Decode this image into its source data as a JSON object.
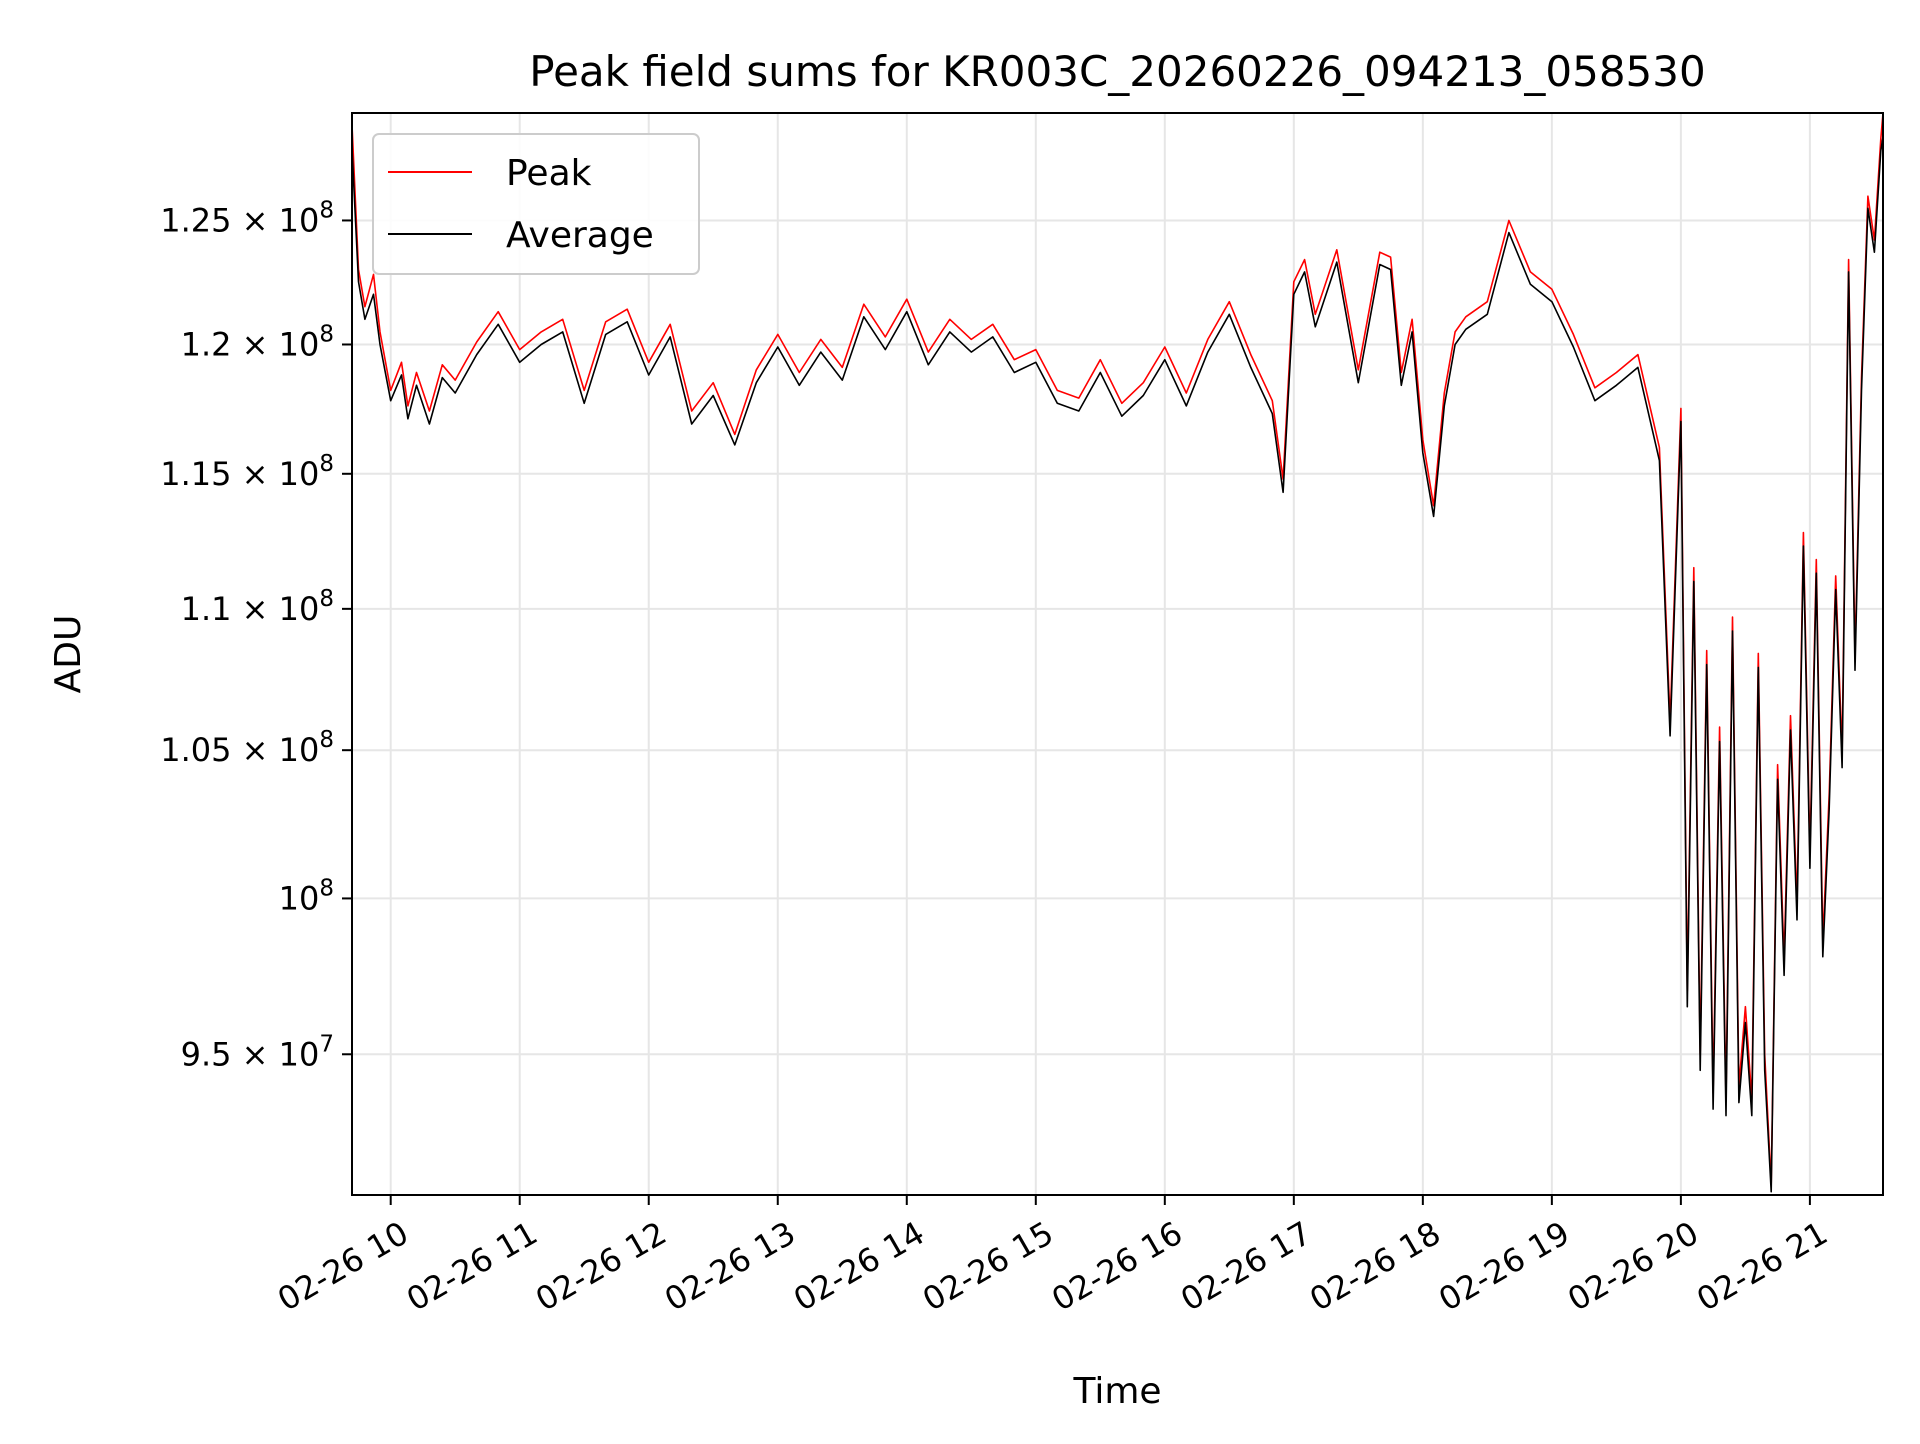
{
  "chart_data": {
    "type": "line",
    "title": "Peak field sums for KR003C_20260226_094213_058530",
    "xlabel": "Time",
    "ylabel": "ADU",
    "y_scale": "log",
    "grid": true,
    "legend_placement": "top-left",
    "xlim": [
      "02-26 09:42",
      "02-26 21:34"
    ],
    "ylim": [
      90700000,
      129500000
    ],
    "x_ticks": [
      {
        "value": "02-26 10:00",
        "label": "02-26 10"
      },
      {
        "value": "02-26 11:00",
        "label": "02-26 11"
      },
      {
        "value": "02-26 12:00",
        "label": "02-26 12"
      },
      {
        "value": "02-26 13:00",
        "label": "02-26 13"
      },
      {
        "value": "02-26 14:00",
        "label": "02-26 14"
      },
      {
        "value": "02-26 15:00",
        "label": "02-26 15"
      },
      {
        "value": "02-26 16:00",
        "label": "02-26 16"
      },
      {
        "value": "02-26 17:00",
        "label": "02-26 17"
      },
      {
        "value": "02-26 18:00",
        "label": "02-26 18"
      },
      {
        "value": "02-26 19:00",
        "label": "02-26 19"
      },
      {
        "value": "02-26 20:00",
        "label": "02-26 20"
      },
      {
        "value": "02-26 21:00",
        "label": "02-26 21"
      }
    ],
    "y_ticks": [
      {
        "value": 95000000,
        "mant": "9.5",
        "exp": "7"
      },
      {
        "value": 100000000,
        "mant": "",
        "exp": "8"
      },
      {
        "value": 105000000,
        "mant": "1.05",
        "exp": "8"
      },
      {
        "value": 110000000,
        "mant": "1.1",
        "exp": "8"
      },
      {
        "value": 115000000,
        "mant": "1.15",
        "exp": "8"
      },
      {
        "value": 120000000,
        "mant": "1.2",
        "exp": "8"
      },
      {
        "value": 125000000,
        "mant": "1.25",
        "exp": "8"
      }
    ],
    "x": [
      "02-26 09:42",
      "02-26 09:45",
      "02-26 09:48",
      "02-26 09:52",
      "02-26 09:55",
      "02-26 10:00",
      "02-26 10:05",
      "02-26 10:08",
      "02-26 10:12",
      "02-26 10:18",
      "02-26 10:24",
      "02-26 10:30",
      "02-26 10:40",
      "02-26 10:50",
      "02-26 11:00",
      "02-26 11:10",
      "02-26 11:20",
      "02-26 11:30",
      "02-26 11:40",
      "02-26 11:50",
      "02-26 12:00",
      "02-26 12:10",
      "02-26 12:20",
      "02-26 12:30",
      "02-26 12:40",
      "02-26 12:50",
      "02-26 13:00",
      "02-26 13:10",
      "02-26 13:20",
      "02-26 13:30",
      "02-26 13:40",
      "02-26 13:50",
      "02-26 14:00",
      "02-26 14:10",
      "02-26 14:20",
      "02-26 14:30",
      "02-26 14:40",
      "02-26 14:50",
      "02-26 15:00",
      "02-26 15:10",
      "02-26 15:20",
      "02-26 15:30",
      "02-26 15:40",
      "02-26 15:50",
      "02-26 16:00",
      "02-26 16:10",
      "02-26 16:20",
      "02-26 16:30",
      "02-26 16:40",
      "02-26 16:50",
      "02-26 16:55",
      "02-26 17:00",
      "02-26 17:05",
      "02-26 17:10",
      "02-26 17:20",
      "02-26 17:30",
      "02-26 17:40",
      "02-26 17:45",
      "02-26 17:50",
      "02-26 17:55",
      "02-26 18:00",
      "02-26 18:05",
      "02-26 18:10",
      "02-26 18:15",
      "02-26 18:20",
      "02-26 18:30",
      "02-26 18:40",
      "02-26 18:50",
      "02-26 19:00",
      "02-26 19:10",
      "02-26 19:20",
      "02-26 19:30",
      "02-26 19:40",
      "02-26 19:50",
      "02-26 19:55",
      "02-26 20:00",
      "02-26 20:03",
      "02-26 20:06",
      "02-26 20:09",
      "02-26 20:12",
      "02-26 20:15",
      "02-26 20:18",
      "02-26 20:21",
      "02-26 20:24",
      "02-26 20:27",
      "02-26 20:30",
      "02-26 20:33",
      "02-26 20:36",
      "02-26 20:39",
      "02-26 20:42",
      "02-26 20:45",
      "02-26 20:48",
      "02-26 20:51",
      "02-26 20:54",
      "02-26 20:57",
      "02-26 21:00",
      "02-26 21:03",
      "02-26 21:06",
      "02-26 21:09",
      "02-26 21:12",
      "02-26 21:15",
      "02-26 21:18",
      "02-26 21:21",
      "02-26 21:24",
      "02-26 21:27",
      "02-26 21:30",
      "02-26 21:33",
      "02-26 21:34"
    ],
    "series": [
      {
        "name": "Peak",
        "color": "#ff0000",
        "values": [
          129000000,
          123000000,
          121500000,
          122800000,
          120500000,
          118200000,
          119300000,
          117600000,
          118900000,
          117400000,
          119200000,
          118600000,
          120100000,
          121300000,
          119800000,
          120500000,
          121000000,
          118200000,
          120900000,
          121400000,
          119300000,
          120800000,
          117400000,
          118500000,
          116500000,
          119000000,
          120400000,
          118900000,
          120200000,
          119100000,
          121600000,
          120300000,
          121800000,
          119700000,
          121000000,
          120200000,
          120800000,
          119400000,
          119800000,
          118200000,
          117900000,
          119400000,
          117700000,
          118500000,
          119900000,
          118100000,
          120200000,
          121700000,
          119600000,
          117800000,
          114800000,
          122500000,
          123400000,
          121200000,
          123800000,
          119000000,
          123700000,
          123500000,
          118900000,
          121000000,
          116300000,
          113800000,
          118100000,
          120500000,
          121100000,
          121700000,
          125000000,
          122900000,
          122200000,
          120400000,
          118300000,
          118900000,
          119600000,
          116000000,
          106000000,
          117500000,
          97000000,
          111500000,
          95000000,
          108500000,
          93800000,
          105800000,
          93600000,
          109700000,
          94000000,
          96500000,
          93600000,
          108400000,
          95000000,
          91000000,
          104500000,
          98000000,
          106200000,
          99800000,
          112800000,
          101500000,
          111800000,
          98600000,
          103500000,
          111200000,
          104900000,
          123400000,
          108300000,
          118700000,
          126000000,
          124200000,
          128400000,
          129500000
        ]
      },
      {
        "name": "Average",
        "color": "#000000",
        "values": [
          128000000,
          122500000,
          121000000,
          122000000,
          120000000,
          117800000,
          118800000,
          117100000,
          118400000,
          116900000,
          118700000,
          118100000,
          119600000,
          120800000,
          119300000,
          120000000,
          120500000,
          117700000,
          120400000,
          120900000,
          118800000,
          120300000,
          116900000,
          118000000,
          116100000,
          118500000,
          119900000,
          118400000,
          119700000,
          118600000,
          121100000,
          119800000,
          121300000,
          119200000,
          120500000,
          119700000,
          120300000,
          118900000,
          119300000,
          117700000,
          117400000,
          118900000,
          117200000,
          118000000,
          119400000,
          117600000,
          119700000,
          121200000,
          119100000,
          117300000,
          114300000,
          122000000,
          122900000,
          120700000,
          123300000,
          118500000,
          123200000,
          123000000,
          118400000,
          120500000,
          115800000,
          113400000,
          117600000,
          120000000,
          120600000,
          121200000,
          124500000,
          122400000,
          121700000,
          119900000,
          117800000,
          118400000,
          119100000,
          115500000,
          105500000,
          117000000,
          96500000,
          111000000,
          94500000,
          108000000,
          93300000,
          105300000,
          93100000,
          109200000,
          93500000,
          96000000,
          93100000,
          107900000,
          94500000,
          90800000,
          104000000,
          97500000,
          105700000,
          99300000,
          112300000,
          101000000,
          111300000,
          98100000,
          103000000,
          110700000,
          104400000,
          122900000,
          107800000,
          118200000,
          125500000,
          123700000,
          127900000,
          128500000
        ]
      }
    ]
  }
}
